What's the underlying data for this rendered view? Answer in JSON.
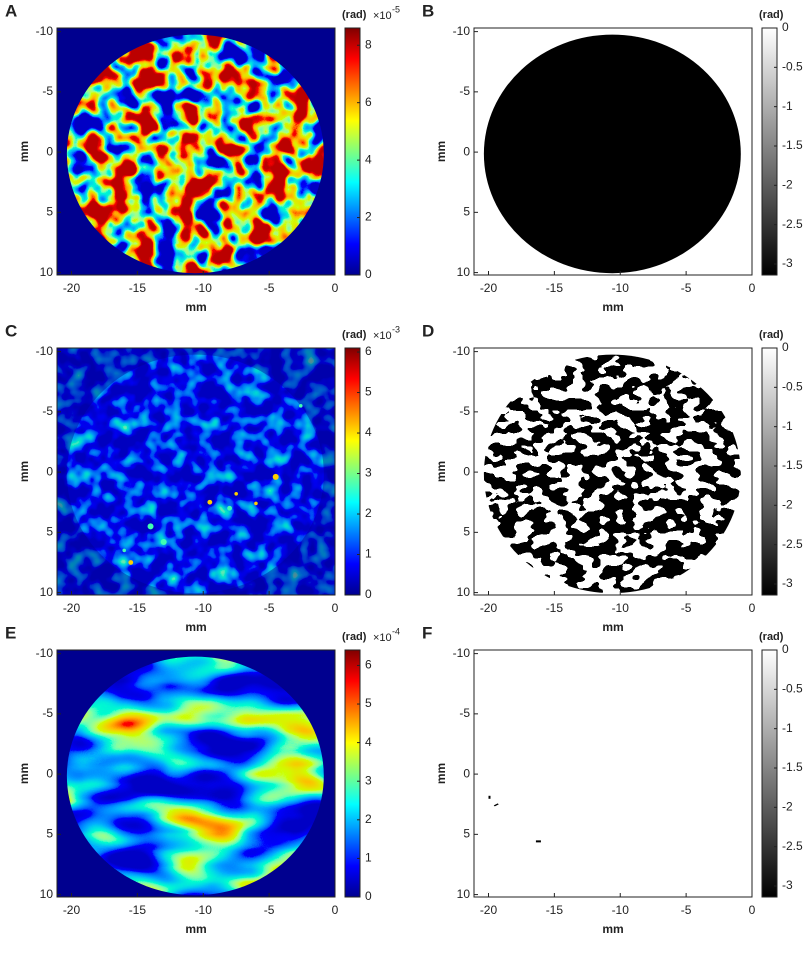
{
  "chart_data": [
    {
      "type": "heatmap",
      "panel_label": "A",
      "xlabel": "mm",
      "ylabel": "mm",
      "xlim": [
        -21.1,
        0
      ],
      "xticks": [
        -20,
        -15,
        -10,
        -5,
        0
      ],
      "ylim": [
        -10.3,
        10.2
      ],
      "yticks": [
        -10,
        -5,
        0,
        5,
        10
      ],
      "y_reversed": true,
      "colormap": "jet",
      "pattern": "speckle",
      "colorbar": {
        "label": "(rad)",
        "scale_base": "×10",
        "scale_exponent": "-5",
        "clim": [
          0,
          8.6
        ],
        "ticks": [
          0,
          2,
          4,
          6,
          8
        ]
      }
    },
    {
      "type": "heatmap",
      "panel_label": "B",
      "xlabel": "mm",
      "ylabel": "mm",
      "xlim": [
        -21.1,
        0
      ],
      "xticks": [
        -20,
        -15,
        -10,
        -5,
        0
      ],
      "ylim": [
        -10.3,
        10.2
      ],
      "yticks": [
        -10,
        -5,
        0,
        5,
        10
      ],
      "y_reversed": true,
      "colormap": "gray",
      "pattern": "solid",
      "colorbar": {
        "label": "(rad)",
        "clim": [
          -3.14,
          0
        ],
        "ticks": [
          0,
          -0.5,
          -1,
          -1.5,
          -2,
          -2.5,
          -3
        ]
      }
    },
    {
      "type": "heatmap",
      "panel_label": "C",
      "xlabel": "mm",
      "ylabel": "mm",
      "xlim": [
        -21.1,
        0
      ],
      "xticks": [
        -20,
        -15,
        -10,
        -5,
        0
      ],
      "ylim": [
        -10.3,
        10.2
      ],
      "yticks": [
        -10,
        -5,
        0,
        5,
        10
      ],
      "y_reversed": true,
      "colormap": "jet",
      "pattern": "faint",
      "colorbar": {
        "label": "(rad)",
        "scale_base": "×10",
        "scale_exponent": "-3",
        "clim": [
          0,
          6.1
        ],
        "ticks": [
          0,
          1,
          2,
          3,
          4,
          5,
          6
        ]
      }
    },
    {
      "type": "heatmap",
      "panel_label": "D",
      "xlabel": "mm",
      "ylabel": "mm",
      "xlim": [
        -21.1,
        0
      ],
      "xticks": [
        -20,
        -15,
        -10,
        -5,
        0
      ],
      "ylim": [
        -10.3,
        10.2
      ],
      "yticks": [
        -10,
        -5,
        0,
        5,
        10
      ],
      "y_reversed": true,
      "colormap": "gray",
      "pattern": "binary",
      "colorbar": {
        "label": "(rad)",
        "clim": [
          -3.14,
          0
        ],
        "ticks": [
          0,
          -0.5,
          -1,
          -1.5,
          -2,
          -2.5,
          -3
        ]
      }
    },
    {
      "type": "heatmap",
      "panel_label": "E",
      "xlabel": "mm",
      "ylabel": "mm",
      "xlim": [
        -21.1,
        0
      ],
      "xticks": [
        -20,
        -15,
        -10,
        -5,
        0
      ],
      "ylim": [
        -10.3,
        10.2
      ],
      "yticks": [
        -10,
        -5,
        0,
        5,
        10
      ],
      "y_reversed": true,
      "colormap": "jet",
      "pattern": "smooth",
      "colorbar": {
        "label": "(rad)",
        "scale_base": "×10",
        "scale_exponent": "-4",
        "clim": [
          0,
          6.4
        ],
        "ticks": [
          0,
          1,
          2,
          3,
          4,
          5,
          6
        ]
      }
    },
    {
      "type": "heatmap",
      "panel_label": "F",
      "xlabel": "mm",
      "ylabel": "mm",
      "xlim": [
        -21.1,
        0
      ],
      "xticks": [
        -20,
        -15,
        -10,
        -5,
        0
      ],
      "ylim": [
        -10.3,
        10.2
      ],
      "yticks": [
        -10,
        -5,
        0,
        5,
        10
      ],
      "y_reversed": true,
      "colormap": "gray",
      "pattern": "specks",
      "colorbar": {
        "label": "(rad)",
        "clim": [
          -3.14,
          0
        ],
        "ticks": [
          0,
          -0.5,
          -1,
          -1.5,
          -2,
          -2.5,
          -3
        ]
      }
    }
  ]
}
